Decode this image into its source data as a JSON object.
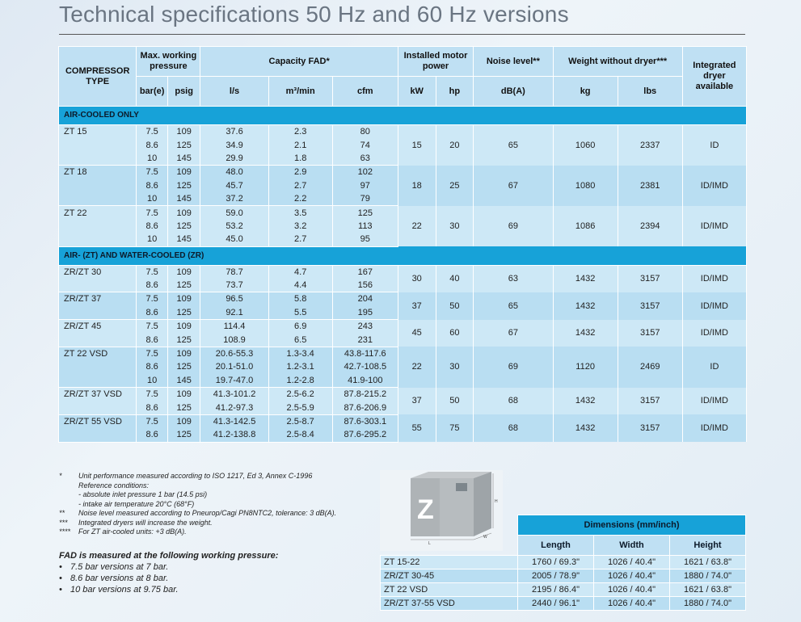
{
  "title": "Technical specifications 50 Hz and 60 Hz versions",
  "spec_table": {
    "headers": {
      "compressor_type": "COMPRESSOR TYPE",
      "max_pressure": "Max. working pressure",
      "capacity": "Capacity FAD*",
      "motor": "Installed motor power",
      "noise": "Noise level**",
      "weight": "Weight without dryer***",
      "dryer": "Integrated dryer available",
      "units": [
        "bar(e)",
        "psig",
        "l/s",
        "m³/min",
        "cfm",
        "kW",
        "hp",
        "dB(A)",
        "kg",
        "lbs"
      ]
    },
    "sections": [
      {
        "label": "AIR-COOLED ONLY",
        "groups": [
          {
            "model": "ZT 15",
            "kw": "15",
            "hp": "20",
            "noise": "65",
            "kg": "1060",
            "lbs": "2337",
            "dryer": "ID",
            "rows": [
              [
                "7.5",
                "109",
                "37.6",
                "2.3",
                "80"
              ],
              [
                "8.6",
                "125",
                "34.9",
                "2.1",
                "74"
              ],
              [
                "10",
                "145",
                "29.9",
                "1.8",
                "63"
              ]
            ]
          },
          {
            "model": "ZT 18",
            "kw": "18",
            "hp": "25",
            "noise": "67",
            "kg": "1080",
            "lbs": "2381",
            "dryer": "ID/IMD",
            "rows": [
              [
                "7.5",
                "109",
                "48.0",
                "2.9",
                "102"
              ],
              [
                "8.6",
                "125",
                "45.7",
                "2.7",
                "97"
              ],
              [
                "10",
                "145",
                "37.2",
                "2.2",
                "79"
              ]
            ]
          },
          {
            "model": "ZT 22",
            "kw": "22",
            "hp": "30",
            "noise": "69",
            "kg": "1086",
            "lbs": "2394",
            "dryer": "ID/IMD",
            "rows": [
              [
                "7.5",
                "109",
                "59.0",
                "3.5",
                "125"
              ],
              [
                "8.6",
                "125",
                "53.2",
                "3.2",
                "113"
              ],
              [
                "10",
                "145",
                "45.0",
                "2.7",
                "95"
              ]
            ]
          }
        ]
      },
      {
        "label": "AIR- (ZT) AND WATER-COOLED (ZR)",
        "groups": [
          {
            "model": "ZR/ZT 30",
            "kw": "30",
            "hp": "40",
            "noise": "63",
            "kg": "1432",
            "lbs": "3157",
            "dryer": "ID/IMD",
            "rows": [
              [
                "7.5",
                "109",
                "78.7",
                "4.7",
                "167"
              ],
              [
                "8.6",
                "125",
                "73.7",
                "4.4",
                "156"
              ]
            ]
          },
          {
            "model": "ZR/ZT 37",
            "kw": "37",
            "hp": "50",
            "noise": "65",
            "kg": "1432",
            "lbs": "3157",
            "dryer": "ID/IMD",
            "rows": [
              [
                "7.5",
                "109",
                "96.5",
                "5.8",
                "204"
              ],
              [
                "8.6",
                "125",
                "92.1",
                "5.5",
                "195"
              ]
            ]
          },
          {
            "model": "ZR/ZT 45",
            "kw": "45",
            "hp": "60",
            "noise": "67",
            "kg": "1432",
            "lbs": "3157",
            "dryer": "ID/IMD",
            "rows": [
              [
                "7.5",
                "109",
                "114.4",
                "6.9",
                "243"
              ],
              [
                "8.6",
                "125",
                "108.9",
                "6.5",
                "231"
              ]
            ]
          },
          {
            "model": "ZT 22 VSD",
            "kw": "22",
            "hp": "30",
            "noise": "69",
            "kg": "1120",
            "lbs": "2469",
            "dryer": "ID",
            "rows": [
              [
                "7.5",
                "109",
                "20.6-55.3",
                "1.3-3.4",
                "43.8-117.6"
              ],
              [
                "8.6",
                "125",
                "20.1-51.0",
                "1.2-3.1",
                "42.7-108.5"
              ],
              [
                "10",
                "145",
                "19.7-47.0",
                "1.2-2.8",
                "41.9-100"
              ]
            ]
          },
          {
            "model": "ZR/ZT 37 VSD",
            "kw": "37",
            "hp": "50",
            "noise": "68",
            "kg": "1432",
            "lbs": "3157",
            "dryer": "ID/IMD",
            "rows": [
              [
                "7.5",
                "109",
                "41.3-101.2",
                "2.5-6.2",
                "87.8-215.2"
              ],
              [
                "8.6",
                "125",
                "41.2-97.3",
                "2.5-5.9",
                "87.6-206.9"
              ]
            ]
          },
          {
            "model": "ZR/ZT 55 VSD",
            "kw": "55",
            "hp": "75",
            "noise": "68",
            "kg": "1432",
            "lbs": "3157",
            "dryer": "ID/IMD",
            "rows": [
              [
                "7.5",
                "109",
                "41.3-142.5",
                "2.5-8.7",
                "87.6-303.1"
              ],
              [
                "8.6",
                "125",
                "41.2-138.8",
                "2.5-8.4",
                "87.6-295.2"
              ]
            ]
          }
        ]
      }
    ]
  },
  "footnotes": [
    {
      "mark": "*",
      "lines": [
        "Unit performance measured according to ISO 1217, Ed 3, Annex C-1996",
        "Reference conditions:",
        "- absolute inlet pressure 1 bar (14.5 psi)",
        "- intake air temperature 20°C (68°F)"
      ]
    },
    {
      "mark": "**",
      "lines": [
        "Noise level measured according to Pneurop/Cagi PN8NTC2, tolerance: 3 dB(A)."
      ]
    },
    {
      "mark": "***",
      "lines": [
        "Integrated dryers will increase the weight."
      ]
    },
    {
      "mark": "****",
      "lines": [
        "For ZT air-cooled units: +3 dB(A)."
      ]
    }
  ],
  "fad": {
    "title": "FAD is measured at the following working pressure:",
    "items": [
      "7.5 bar versions at 7 bar.",
      "8.6 bar versions at 8 bar.",
      "10 bar versions at 9.75 bar."
    ]
  },
  "illustration": {
    "letter": "Z",
    "dim_labels": [
      "H",
      "W",
      "L"
    ]
  },
  "dimensions": {
    "title": "Dimensions (mm/inch)",
    "columns": [
      "Length",
      "Width",
      "Height"
    ],
    "rows": [
      {
        "model": "ZT 15-22",
        "values": [
          "1760 / 69.3\"",
          "1026 / 40.4\"",
          "1621 / 63.8\""
        ]
      },
      {
        "model": "ZR/ZT 30-45",
        "values": [
          "2005 / 78.9\"",
          "1026 / 40.4\"",
          "1880 / 74.0\""
        ]
      },
      {
        "model": "ZT 22 VSD",
        "values": [
          "2195 / 86.4\"",
          "1026 / 40.4\"",
          "1621 / 63.8\""
        ]
      },
      {
        "model": "ZR/ZT 37-55 VSD",
        "values": [
          "2440 / 96.1\"",
          "1026 / 40.4\"",
          "1880 / 74.0\""
        ]
      }
    ]
  }
}
